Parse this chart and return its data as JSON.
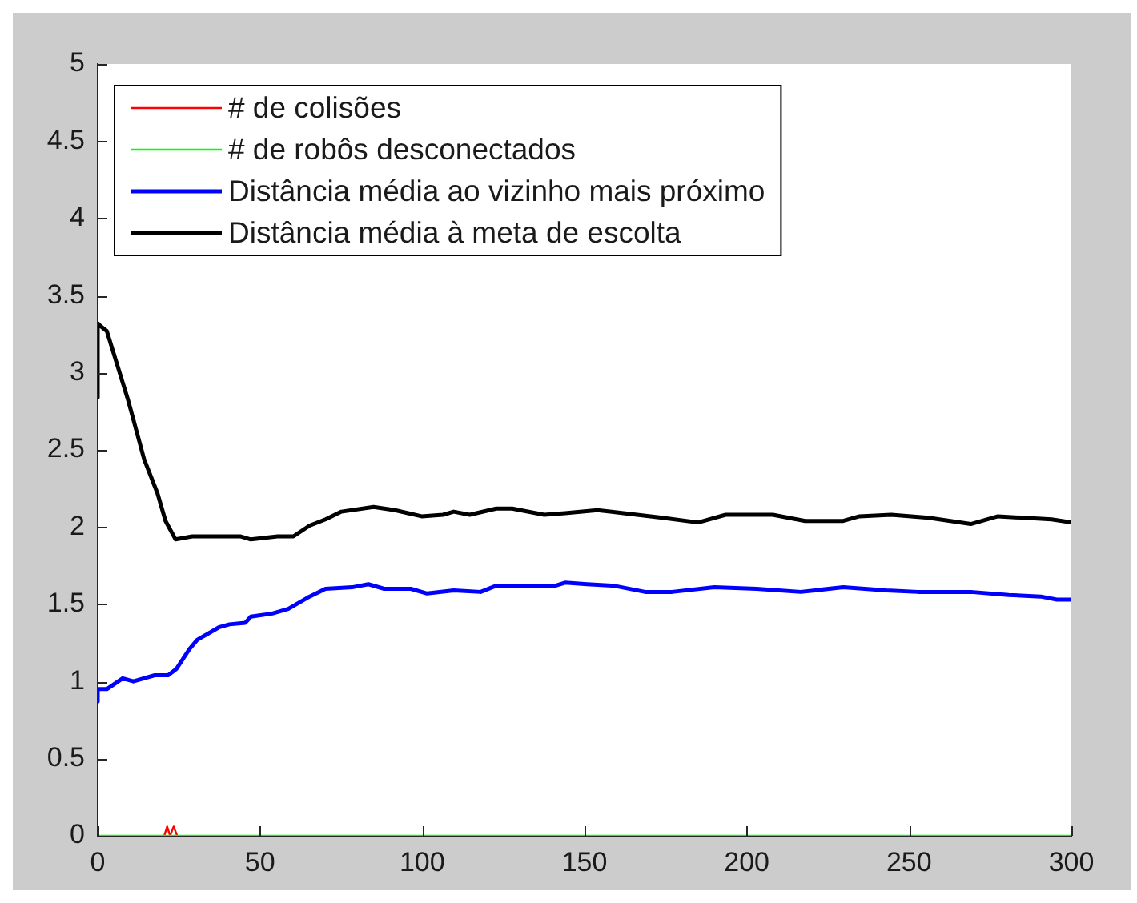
{
  "chart_data": {
    "type": "line",
    "xlim": [
      0,
      300
    ],
    "xticks": [
      0,
      50,
      100,
      150,
      200,
      250,
      300
    ],
    "ylim": [
      0,
      5
    ],
    "yticks": [
      0,
      0.5,
      1,
      1.5,
      2,
      2.5,
      3,
      3.5,
      4,
      4.5,
      5
    ],
    "legend": "top left",
    "series": [
      {
        "name": "# de colisões",
        "color": "#ff0000",
        "x": [
          20.5,
          21.4,
          22.3,
          23.4,
          24.5
        ],
        "values": [
          0,
          0.06,
          0,
          0.06,
          0
        ]
      },
      {
        "name": "# de robôs desconectados",
        "color": "#00ff00",
        "x": [
          0,
          300
        ],
        "values": [
          0,
          0
        ]
      },
      {
        "name": "Distância média ao vizinho mais próximo",
        "color": "#0000ff",
        "x": [
          0,
          0,
          2.8,
          7.7,
          11,
          17.6,
          21.7,
          24.2,
          28.3,
          30.7,
          37.3,
          40.6,
          45.5,
          47.2,
          53.8,
          58.7,
          65.3,
          70.2,
          78.4,
          83.4,
          88.3,
          96.5,
          101.5,
          109.7,
          118,
          122.8,
          141,
          144,
          150.8,
          159,
          168.7,
          177,
          190,
          203,
          216.6,
          229.7,
          243,
          252.7,
          269,
          280.7,
          290.6,
          295.5,
          300
        ],
        "values": [
          0.87,
          0.95,
          0.95,
          1.02,
          1.0,
          1.04,
          1.04,
          1.08,
          1.21,
          1.27,
          1.35,
          1.37,
          1.38,
          1.42,
          1.44,
          1.47,
          1.55,
          1.6,
          1.61,
          1.63,
          1.6,
          1.6,
          1.57,
          1.59,
          1.58,
          1.62,
          1.62,
          1.64,
          1.63,
          1.62,
          1.58,
          1.58,
          1.61,
          1.6,
          1.58,
          1.61,
          1.59,
          1.58,
          1.58,
          1.56,
          1.55,
          1.53,
          1.53
        ]
      },
      {
        "name": "Distância média à meta de escolta",
        "color": "#000000",
        "x": [
          0,
          0,
          1,
          2.8,
          9.4,
          14.3,
          18.4,
          20.9,
          24,
          29.1,
          43.9,
          47.2,
          55.4,
          60.3,
          65.3,
          70.2,
          75.1,
          85,
          91.6,
          99.8,
          106.4,
          109.7,
          114.6,
          122.8,
          127.7,
          137.6,
          144,
          154,
          162,
          174,
          185,
          193.5,
          208,
          218,
          229.7,
          234.7,
          244.5,
          256,
          269,
          277.4,
          293.9,
          300
        ],
        "values": [
          2.84,
          3.32,
          3.3,
          3.27,
          2.82,
          2.44,
          2.22,
          2.04,
          1.92,
          1.94,
          1.94,
          1.92,
          1.94,
          1.94,
          2.01,
          2.05,
          2.1,
          2.13,
          2.11,
          2.07,
          2.08,
          2.1,
          2.08,
          2.12,
          2.12,
          2.08,
          2.09,
          2.11,
          2.09,
          2.06,
          2.03,
          2.08,
          2.08,
          2.04,
          2.04,
          2.07,
          2.08,
          2.06,
          2.02,
          2.07,
          2.05,
          2.03
        ]
      }
    ]
  }
}
